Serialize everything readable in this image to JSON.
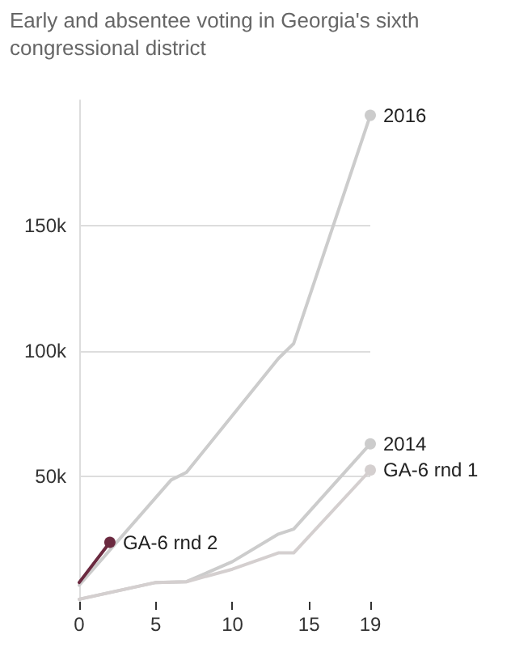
{
  "chart_data": {
    "type": "line",
    "title": "Early and absentee voting in Georgia's sixth congressional district",
    "series": [
      {
        "name": "2016",
        "color": "#cccccc",
        "x": [
          0,
          6,
          7,
          13,
          14,
          19
        ],
        "values": [
          6600,
          48600,
          51600,
          97000,
          103000,
          194000
        ]
      },
      {
        "name": "2014",
        "color": "#cccccc",
        "x": [
          0,
          5,
          7,
          10,
          13,
          14,
          19
        ],
        "values": [
          1000,
          7700,
          8000,
          16000,
          27000,
          29000,
          63000
        ]
      },
      {
        "name": "GA-6 rnd 1",
        "color": "#d4cfcf",
        "x": [
          0,
          5,
          7,
          10,
          13,
          14,
          19
        ],
        "values": [
          1000,
          7700,
          8000,
          13000,
          19500,
          19500,
          52500
        ]
      },
      {
        "name": "GA-6 rnd 2",
        "color": "#6b2a40",
        "x": [
          0,
          2
        ],
        "values": [
          7700,
          23700
        ]
      }
    ],
    "xlim": [
      0,
      19
    ],
    "xticks": [
      0,
      5,
      10,
      15,
      19
    ],
    "ylim": [
      0,
      200000
    ],
    "yticks": [
      {
        "value": 50000,
        "label": "50k"
      },
      {
        "value": 100000,
        "label": "100k"
      },
      {
        "value": 150000,
        "label": "150k"
      }
    ],
    "grid": "y",
    "line_style": "solid",
    "legend": false
  }
}
